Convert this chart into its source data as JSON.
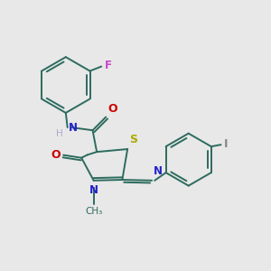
{
  "background_color": "#e8e8e8",
  "bond_color": "#2d6b5e",
  "atom_colors": {
    "N": "#2222cc",
    "O": "#cc0000",
    "S": "#aaaa00",
    "F": "#cc44cc",
    "I": "#888888",
    "H": "#aaaacc"
  },
  "figsize": [
    3.0,
    3.0
  ],
  "dpi": 100,
  "lw": 1.4
}
